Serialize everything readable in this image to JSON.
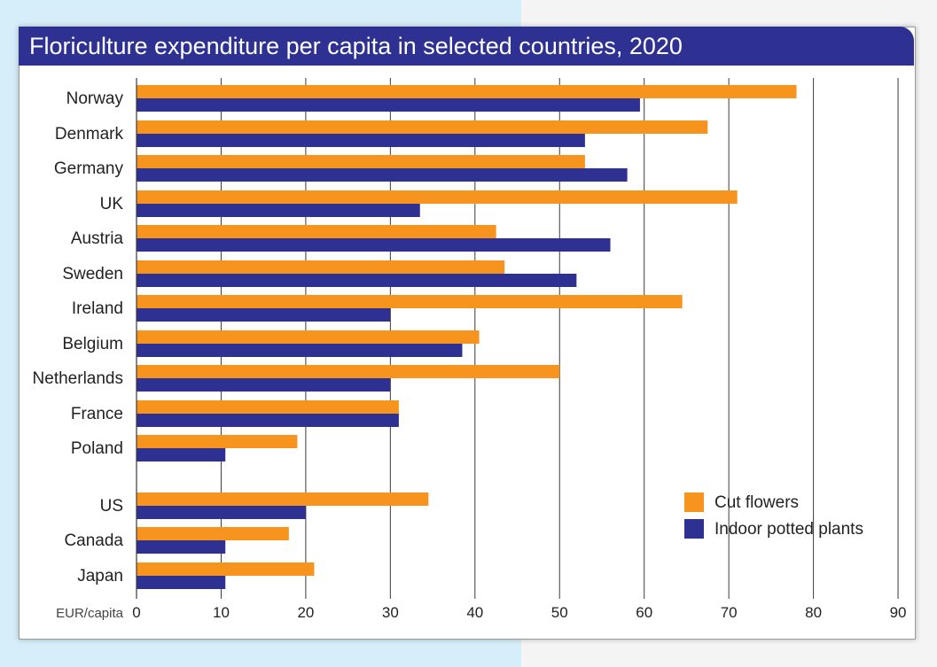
{
  "title": "Floriculture expenditure per capita in selected countries, 2020",
  "chart_data": {
    "type": "bar",
    "orientation": "horizontal",
    "title": "Floriculture expenditure per capita in selected countries, 2020",
    "xlabel": "EUR/capita",
    "ylabel": "",
    "xlim": [
      0,
      90
    ],
    "xticks": [
      0,
      10,
      20,
      30,
      40,
      50,
      60,
      70,
      80,
      90
    ],
    "grid": "vertical",
    "legend_position": "bottom-right",
    "categories": [
      "Norway",
      "Denmark",
      "Germany",
      "UK",
      "Austria",
      "Sweden",
      "Ireland",
      "Belgium",
      "Netherlands",
      "France",
      "Poland",
      "US",
      "Canada",
      "Japan"
    ],
    "series": [
      {
        "name": "Cut flowers",
        "color": "#f7941d",
        "values": [
          78,
          67.5,
          53,
          71,
          42.5,
          43.5,
          64.5,
          40.5,
          50,
          31,
          19,
          34.5,
          18,
          21
        ]
      },
      {
        "name": "Indoor potted plants",
        "color": "#2e3192",
        "values": [
          59.5,
          53,
          58,
          33.5,
          56,
          52,
          30,
          38.5,
          30,
          31,
          10.5,
          20,
          10.5,
          10.5
        ]
      }
    ]
  }
}
